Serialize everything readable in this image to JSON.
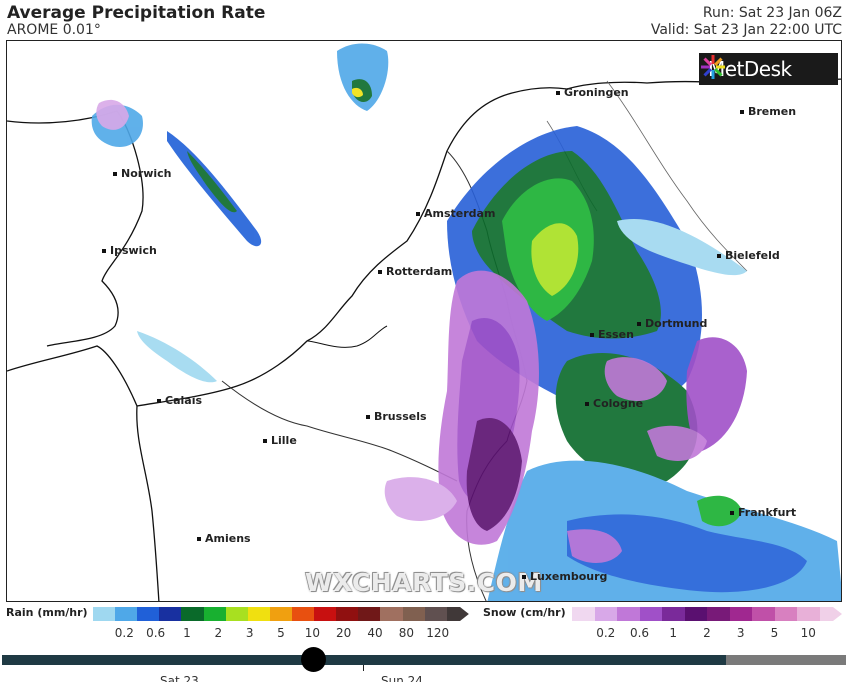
{
  "header": {
    "title": "Average Precipitation Rate",
    "model": "AROME 0.01°",
    "run": "Run: Sat 23 Jan 06Z",
    "valid": "Valid: Sat 23 Jan 22:00 UTC"
  },
  "logo": {
    "text": "MetDesk",
    "icon": "metdesk-star-icon"
  },
  "watermark": "WXCHARTS.COM",
  "cities": [
    {
      "name": "Groningen"
    },
    {
      "name": "Bremen"
    },
    {
      "name": "Norwich"
    },
    {
      "name": "Amsterdam"
    },
    {
      "name": "Ipswich"
    },
    {
      "name": "Rotterdam"
    },
    {
      "name": "Bielefeld"
    },
    {
      "name": "Dortmund"
    },
    {
      "name": "Essen"
    },
    {
      "name": "Calais"
    },
    {
      "name": "Brussels"
    },
    {
      "name": "Cologne"
    },
    {
      "name": "Lille"
    },
    {
      "name": "Frankfurt"
    },
    {
      "name": "Amiens"
    },
    {
      "name": "Luxembourg"
    }
  ],
  "legend": {
    "rain": {
      "label": "Rain (mm/hr)",
      "ticks": [
        "0.2",
        "0.6",
        "1",
        "2",
        "3",
        "5",
        "10",
        "20",
        "40",
        "80",
        "120"
      ],
      "colors": [
        "#9fd8f0",
        "#4fa8e8",
        "#2060d8",
        "#1830a0",
        "#0a6a2a",
        "#18b030",
        "#a8e020",
        "#f0e010",
        "#f0a010",
        "#e85010",
        "#c81010",
        "#901010",
        "#701818",
        "#a07060",
        "#806050",
        "#605050",
        "#403838"
      ]
    },
    "snow": {
      "label": "Snow (cm/hr)",
      "ticks": [
        "0.2",
        "0.6",
        "1",
        "2",
        "3",
        "5",
        "10"
      ],
      "colors": [
        "#f0d8f0",
        "#d8a8e8",
        "#c078d8",
        "#a050c8",
        "#7a2a9a",
        "#5a1070",
        "#781a78",
        "#a02890",
        "#c050a8",
        "#d880c0",
        "#e8b0d8",
        "#f0d0e8"
      ]
    }
  },
  "timeline": {
    "progress": 0.43,
    "days": [
      "Sat 23",
      "Sun 24"
    ]
  }
}
